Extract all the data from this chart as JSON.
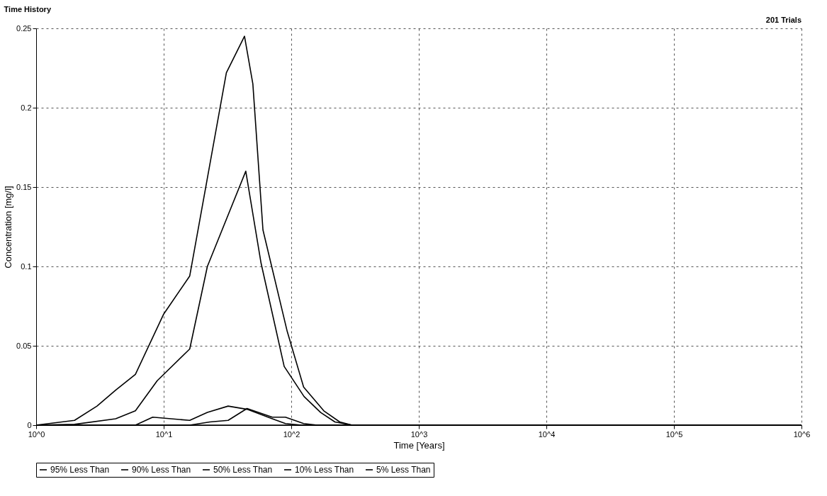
{
  "chart_data": {
    "type": "line",
    "title": "Time History",
    "xlabel": "Time [Years]",
    "ylabel": "Concentration [mg/l]",
    "annotations": [
      "201 Trials"
    ],
    "log": "x",
    "grid": true,
    "legend": "bottom",
    "marker": "none",
    "line_style": "solid",
    "xlim": [
      1,
      1000000
    ],
    "xticks": [
      {
        "value": 1,
        "label": "10^0"
      },
      {
        "value": 10,
        "label": "10^1"
      },
      {
        "value": 100,
        "label": "10^2"
      },
      {
        "value": 1000,
        "label": "10^3"
      },
      {
        "value": 10000,
        "label": "10^4"
      },
      {
        "value": 100000,
        "label": "10^5"
      },
      {
        "value": 1000000,
        "label": "10^6"
      }
    ],
    "ylim": [
      0,
      0.25
    ],
    "yticks": [
      0,
      0.05,
      0.1,
      0.15,
      0.2,
      0.25
    ],
    "series": [
      {
        "name": "95% Less Than",
        "color": "#000000",
        "x": [
          1,
          2,
          3,
          4.2,
          6,
          10,
          16,
          31,
          43,
          50,
          60,
          93,
          125,
          180,
          240,
          300,
          1000000
        ],
        "values": [
          0,
          0.003,
          0.012,
          0.022,
          0.032,
          0.07,
          0.094,
          0.222,
          0.245,
          0.215,
          0.123,
          0.059,
          0.024,
          0.009,
          0.002,
          0,
          0
        ]
      },
      {
        "name": "90% Less Than",
        "color": "#000000",
        "x": [
          1,
          2,
          4.2,
          6,
          8.9,
          16,
          22,
          44,
          58,
          88,
          126,
          170,
          220,
          300,
          1000000
        ],
        "values": [
          0,
          0.0005,
          0.004,
          0.009,
          0.028,
          0.048,
          0.1,
          0.16,
          0.102,
          0.037,
          0.018,
          0.008,
          0.002,
          0,
          0
        ]
      },
      {
        "name": "50% Less Than",
        "color": "#000000",
        "x": [
          1,
          6,
          8.2,
          16,
          22,
          32,
          45,
          71,
          90,
          120,
          1000000
        ],
        "values": [
          0,
          0,
          0.005,
          0.003,
          0.008,
          0.012,
          0.01,
          0.004,
          0.001,
          0,
          0
        ]
      },
      {
        "name": "10% Less Than",
        "color": "#000000",
        "x": [
          1,
          16,
          23,
          32,
          45,
          71,
          90,
          125,
          160,
          1000000
        ],
        "values": [
          0,
          0,
          0.002,
          0.003,
          0.0105,
          0.005,
          0.005,
          0.001,
          0,
          0
        ]
      },
      {
        "name": "5% Less Than",
        "color": "#000000",
        "x": [
          1,
          1000000
        ],
        "values": [
          0,
          0
        ]
      }
    ]
  }
}
